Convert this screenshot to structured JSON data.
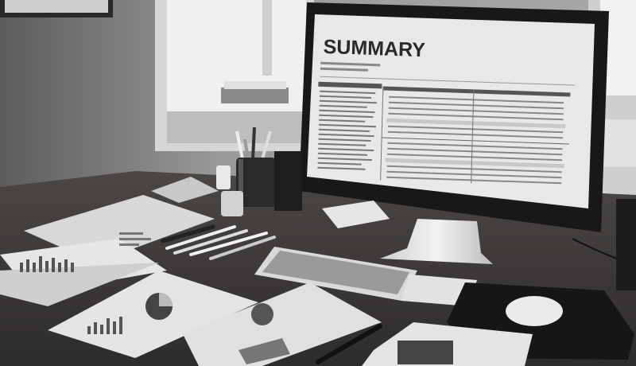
{
  "monitor": {
    "title": "SUMMARY"
  },
  "palette": {
    "wall": "#8c8c8c",
    "window_light": "#e6e6e6",
    "desk": "#3d3b39",
    "monitor_bezel": "#1a1a1a",
    "screen": "#e9e9e7",
    "paper": "#dcdcdc"
  },
  "icons": [
    "monitor",
    "keyboard",
    "mouse",
    "mouse-pad",
    "pen-holder",
    "documents"
  ]
}
